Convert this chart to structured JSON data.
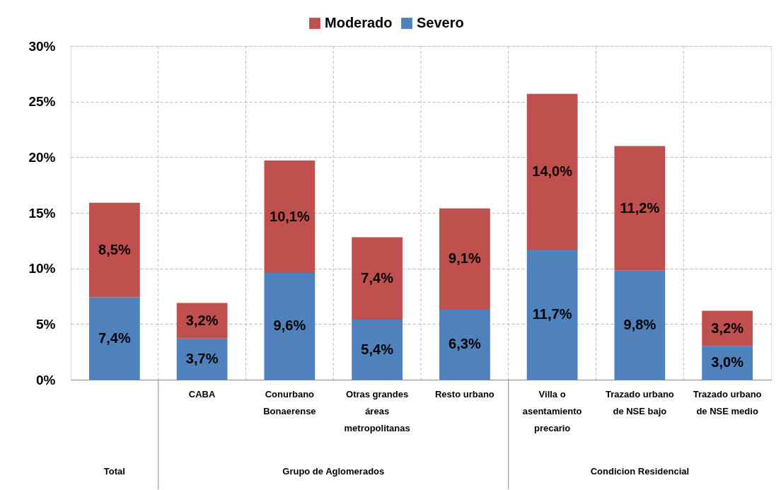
{
  "chart_data": {
    "type": "bar",
    "stacked": true,
    "categories": [
      null,
      "CABA",
      "Conurbano\nBonaerense",
      "Otras grandes\náreas\nmetropolitanas",
      "Resto urbano",
      "Villa o\nasentamiento\nprecario",
      "Trazado  urbano\nde NSE bajo",
      "Trazado urbano\nde NSE medio"
    ],
    "series": [
      {
        "name": "Severo",
        "color": "#4f81bd",
        "values": [
          7.4,
          3.7,
          9.6,
          5.4,
          6.3,
          11.7,
          9.8,
          3.0
        ],
        "value_labels": [
          "7,4%",
          "3,7%",
          "9,6%",
          "5,4%",
          "6,3%",
          "11,7%",
          "9,8%",
          "3,0%"
        ]
      },
      {
        "name": "Moderado",
        "color": "#c0504d",
        "values": [
          8.5,
          3.2,
          10.1,
          7.4,
          9.1,
          14.0,
          11.2,
          3.2
        ],
        "value_labels": [
          "8,5%",
          "3,2%",
          "10,1%",
          "7,4%",
          "9,1%",
          "14,0%",
          "11,2%",
          "3,2%"
        ]
      }
    ],
    "ylim": [
      0,
      30
    ],
    "yticks": [
      {
        "value": 0,
        "label": "0%"
      },
      {
        "value": 5,
        "label": "5%"
      },
      {
        "value": 10,
        "label": "10%"
      },
      {
        "value": 15,
        "label": "15%"
      },
      {
        "value": 20,
        "label": "20%"
      },
      {
        "value": 25,
        "label": "25%"
      },
      {
        "value": 30,
        "label": "30%"
      }
    ],
    "annotations": [
      "Total",
      "Grupo de Aglomerados",
      "Condicion Residencial"
    ],
    "grid": true,
    "legend": "top"
  }
}
